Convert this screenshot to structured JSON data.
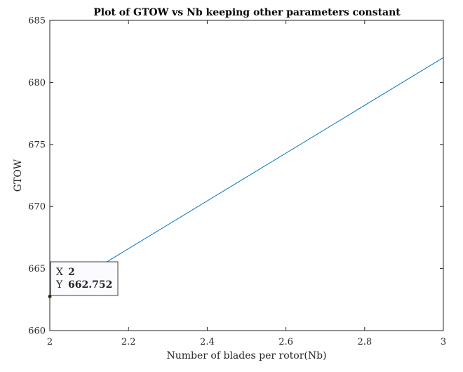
{
  "chart_data": {
    "type": "line",
    "title": "Plot of GTOW vs Nb keeping other parameters constant",
    "xlabel": "Number of blades per rotor(Nb)",
    "ylabel": "GTOW",
    "xlim": [
      2,
      3
    ],
    "ylim": [
      660,
      685
    ],
    "xticks": [
      2,
      2.2,
      2.4,
      2.6,
      2.8,
      3
    ],
    "xtick_labels": [
      "2",
      "2.2",
      "2.4",
      "2.6",
      "2.8",
      "3"
    ],
    "yticks": [
      660,
      665,
      670,
      675,
      680,
      685
    ],
    "ytick_labels": [
      "660",
      "665",
      "670",
      "675",
      "680",
      "685"
    ],
    "grid": false,
    "series": [
      {
        "color": "#0072BD",
        "x": [
          2,
          3
        ],
        "y": [
          662.752,
          682.0
        ]
      }
    ],
    "datatip": {
      "x": 2,
      "y": 662.752,
      "x_key": "X",
      "y_key": "Y",
      "x_text": "2",
      "y_text": "662.752",
      "value_color": "#1A9BEA",
      "marker_color": "#2B2B1A"
    }
  }
}
